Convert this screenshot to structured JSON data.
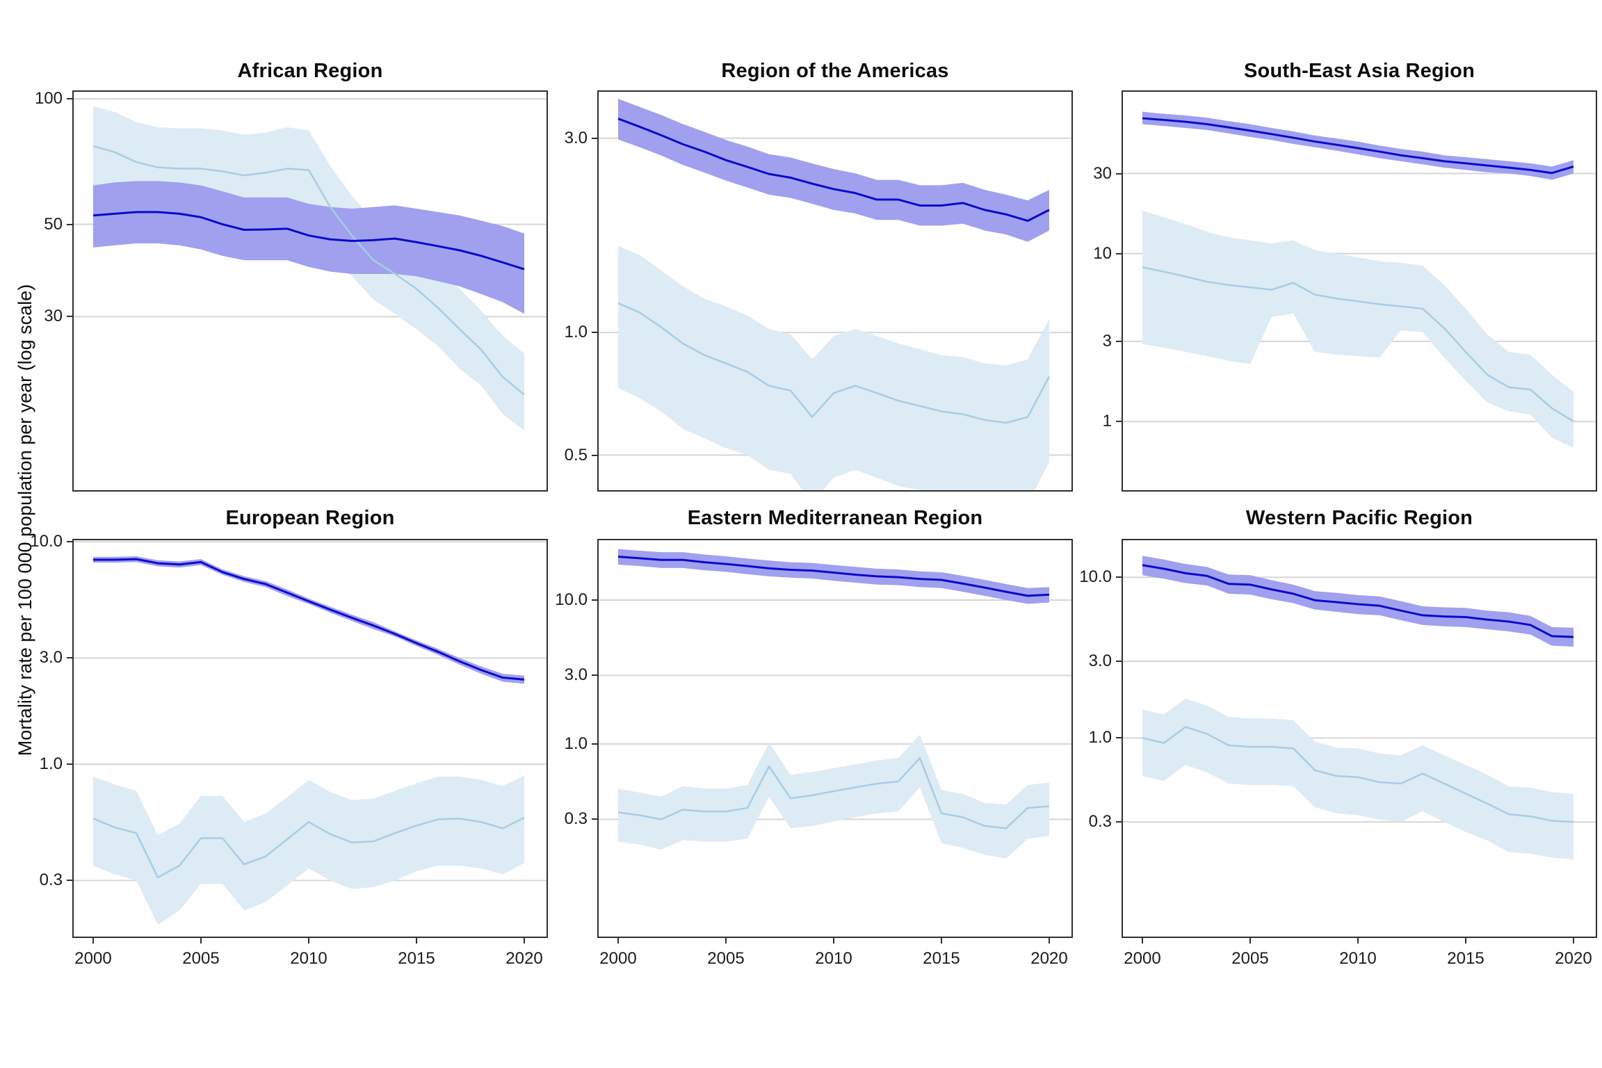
{
  "figure": {
    "y_axis_title": "Mortality rate per 100 000 population per year (log scale)"
  },
  "colors": {
    "dark_line": "#0a0acd",
    "dark_band": "#a0a0ef",
    "light_line": "#a6cde3",
    "light_band": "#ddebf5",
    "gridline": "#d6d6d6",
    "panel_border": "#2f2f2f",
    "text": "#0d0d0d"
  },
  "x_ticks": [
    "2000",
    "2005",
    "2010",
    "2015",
    "2020"
  ],
  "chart_data": [
    {
      "type": "line",
      "title": "African Region",
      "x_range": [
        2000,
        2020
      ],
      "ylim": [
        11.5,
        104
      ],
      "grid": true,
      "legend": "none",
      "y_ticks": [
        {
          "label": "100",
          "value": 100
        },
        {
          "label": "50",
          "value": 50
        },
        {
          "label": "30",
          "value": 30
        }
      ],
      "series": [
        {
          "name": "dark-blue-estimate",
          "values": [
            52.5,
            53,
            53.5,
            53.5,
            53,
            52,
            50,
            48.5,
            48.6,
            48.8,
            47,
            46,
            45.6,
            45.8,
            46.2,
            45.3,
            44.3,
            43.3,
            42,
            40.5,
            39
          ],
          "lower": [
            44,
            44.5,
            45,
            45,
            44.5,
            43.5,
            42,
            41,
            41,
            41,
            39.5,
            38.5,
            38,
            38,
            38,
            37.5,
            36.5,
            35.5,
            34,
            32.5,
            30.5
          ],
          "upper": [
            62,
            63,
            63.5,
            63.5,
            63,
            62,
            60,
            58,
            58,
            58,
            56,
            55,
            54.5,
            55,
            55.5,
            54.5,
            53.5,
            52.5,
            51,
            49.5,
            47.5
          ]
        },
        {
          "name": "light-blue-estimate",
          "values": [
            77,
            74.5,
            70.5,
            68.5,
            68,
            68,
            67,
            65.5,
            66.5,
            68,
            67.5,
            55,
            47,
            41,
            38,
            35,
            31.5,
            28,
            25,
            21.5,
            19.5
          ],
          "lower": [
            61,
            59,
            56,
            54.5,
            54,
            54,
            53,
            52,
            53,
            54.5,
            54,
            44,
            37.5,
            33,
            30.5,
            28,
            25.5,
            22.5,
            20.5,
            17.5,
            16
          ],
          "upper": [
            96,
            93,
            88,
            85.5,
            85,
            85,
            84,
            82,
            83,
            85.5,
            84,
            69,
            58.5,
            51,
            47.5,
            44,
            39.5,
            35,
            31,
            27,
            24.5
          ]
        }
      ]
    },
    {
      "type": "line",
      "title": "Region of the Americas",
      "x_range": [
        2000,
        2020
      ],
      "ylim": [
        0.41,
        3.9
      ],
      "grid": true,
      "legend": "none",
      "y_ticks": [
        {
          "label": "3.0",
          "value": 3.0
        },
        {
          "label": "1.0",
          "value": 1.0
        },
        {
          "label": "0.5",
          "value": 0.5
        }
      ],
      "series": [
        {
          "name": "dark-blue-estimate",
          "values": [
            3.35,
            3.2,
            3.05,
            2.9,
            2.78,
            2.65,
            2.55,
            2.45,
            2.4,
            2.32,
            2.25,
            2.2,
            2.12,
            2.12,
            2.05,
            2.05,
            2.08,
            2.0,
            1.95,
            1.88,
            2.0
          ],
          "lower": [
            2.98,
            2.85,
            2.72,
            2.58,
            2.47,
            2.36,
            2.27,
            2.18,
            2.14,
            2.07,
            2.0,
            1.96,
            1.89,
            1.89,
            1.83,
            1.83,
            1.85,
            1.78,
            1.74,
            1.67,
            1.78
          ],
          "upper": [
            3.75,
            3.58,
            3.42,
            3.25,
            3.11,
            2.97,
            2.86,
            2.74,
            2.69,
            2.6,
            2.52,
            2.46,
            2.37,
            2.37,
            2.3,
            2.3,
            2.33,
            2.24,
            2.18,
            2.11,
            2.24
          ]
        },
        {
          "name": "light-blue-estimate",
          "values": [
            1.18,
            1.12,
            1.03,
            0.94,
            0.88,
            0.84,
            0.8,
            0.74,
            0.72,
            0.62,
            0.71,
            0.74,
            0.71,
            0.68,
            0.66,
            0.64,
            0.63,
            0.61,
            0.6,
            0.62,
            0.78
          ],
          "lower": [
            0.73,
            0.69,
            0.64,
            0.58,
            0.55,
            0.52,
            0.5,
            0.46,
            0.45,
            0.38,
            0.44,
            0.46,
            0.44,
            0.42,
            0.41,
            0.4,
            0.39,
            0.38,
            0.37,
            0.38,
            0.48
          ],
          "upper": [
            1.63,
            1.55,
            1.42,
            1.3,
            1.21,
            1.16,
            1.1,
            1.02,
            0.99,
            0.86,
            0.98,
            1.02,
            0.98,
            0.94,
            0.91,
            0.88,
            0.87,
            0.84,
            0.83,
            0.86,
            1.08
          ]
        }
      ]
    },
    {
      "type": "line",
      "title": "South-East Asia Region",
      "x_range": [
        2000,
        2020
      ],
      "ylim": [
        0.39,
        92
      ],
      "grid": true,
      "legend": "none",
      "y_ticks": [
        {
          "label": "30",
          "value": 30
        },
        {
          "label": "10",
          "value": 10
        },
        {
          "label": "3",
          "value": 3
        },
        {
          "label": "1",
          "value": 1
        }
      ],
      "series": [
        {
          "name": "dark-blue-estimate",
          "values": [
            64,
            62.5,
            61,
            59,
            56.5,
            54,
            51.5,
            49,
            46.5,
            44.5,
            42.5,
            40.5,
            38.5,
            37,
            35.5,
            34.5,
            33.5,
            32.5,
            31.5,
            30.2,
            33
          ],
          "lower": [
            59,
            57.5,
            56,
            54.5,
            52,
            49.5,
            47.5,
            45,
            43,
            41,
            39,
            37,
            35.5,
            34,
            32.5,
            31.5,
            30.5,
            30,
            29,
            27.5,
            30
          ],
          "upper": [
            70,
            68,
            66.5,
            64.5,
            61.5,
            59,
            56,
            53.5,
            50.5,
            48.5,
            46.5,
            44,
            42,
            40.5,
            38.5,
            37.5,
            36.5,
            35.5,
            34.5,
            33,
            36
          ]
        },
        {
          "name": "light-blue-estimate",
          "values": [
            8.3,
            7.8,
            7.3,
            6.8,
            6.5,
            6.3,
            6.1,
            6.7,
            5.7,
            5.4,
            5.2,
            5.0,
            4.85,
            4.7,
            3.6,
            2.6,
            1.9,
            1.6,
            1.55,
            1.2,
            1.0
          ],
          "lower": [
            2.9,
            2.75,
            2.6,
            2.45,
            2.3,
            2.2,
            4.2,
            4.4,
            2.6,
            2.5,
            2.45,
            2.4,
            3.5,
            3.4,
            2.4,
            1.75,
            1.3,
            1.15,
            1.1,
            0.8,
            0.7
          ],
          "upper": [
            18,
            16.5,
            15,
            13.5,
            12.5,
            12,
            11.5,
            12,
            10.5,
            10,
            9.5,
            9,
            8.8,
            8.5,
            6.5,
            4.7,
            3.3,
            2.6,
            2.5,
            1.9,
            1.5
          ]
        }
      ]
    },
    {
      "type": "line",
      "title": "European Region",
      "x_range": [
        2000,
        2020
      ],
      "ylim": [
        0.168,
        10.15
      ],
      "grid": true,
      "legend": "none",
      "y_ticks": [
        {
          "label": "10.0",
          "value": 10.0
        },
        {
          "label": "3.0",
          "value": 3.0
        },
        {
          "label": "1.0",
          "value": 1.0
        },
        {
          "label": "0.3",
          "value": 0.3
        }
      ],
      "series": [
        {
          "name": "dark-blue-estimate",
          "values": [
            8.3,
            8.3,
            8.35,
            8.0,
            7.9,
            8.1,
            7.3,
            6.8,
            6.45,
            5.9,
            5.4,
            4.95,
            4.55,
            4.2,
            3.85,
            3.5,
            3.2,
            2.9,
            2.65,
            2.45,
            2.4
          ],
          "lower": [
            8.05,
            8.05,
            8.1,
            7.75,
            7.65,
            7.85,
            7.1,
            6.6,
            6.25,
            5.7,
            5.25,
            4.8,
            4.4,
            4.05,
            3.75,
            3.4,
            3.1,
            2.8,
            2.55,
            2.35,
            2.3
          ],
          "upper": [
            8.55,
            8.55,
            8.6,
            8.25,
            8.15,
            8.35,
            7.5,
            7.0,
            6.65,
            6.1,
            5.55,
            5.1,
            4.7,
            4.35,
            3.95,
            3.6,
            3.3,
            3.0,
            2.75,
            2.55,
            2.5
          ]
        },
        {
          "name": "light-blue-estimate",
          "values": [
            0.57,
            0.52,
            0.49,
            0.31,
            0.35,
            0.465,
            0.465,
            0.355,
            0.385,
            0.46,
            0.55,
            0.485,
            0.445,
            0.45,
            0.49,
            0.53,
            0.565,
            0.57,
            0.55,
            0.515,
            0.575
          ],
          "lower": [
            0.35,
            0.32,
            0.3,
            0.19,
            0.22,
            0.29,
            0.29,
            0.22,
            0.24,
            0.285,
            0.34,
            0.3,
            0.275,
            0.28,
            0.3,
            0.33,
            0.35,
            0.35,
            0.34,
            0.32,
            0.36
          ],
          "upper": [
            0.88,
            0.81,
            0.76,
            0.48,
            0.54,
            0.72,
            0.72,
            0.55,
            0.6,
            0.71,
            0.85,
            0.75,
            0.69,
            0.7,
            0.76,
            0.82,
            0.88,
            0.88,
            0.85,
            0.8,
            0.89
          ]
        }
      ]
    },
    {
      "type": "line",
      "title": "Eastern Mediterranean Region",
      "x_range": [
        2000,
        2020
      ],
      "ylim": [
        0.046,
        26
      ],
      "grid": true,
      "legend": "none",
      "y_ticks": [
        {
          "label": "10.0",
          "value": 10.0
        },
        {
          "label": "3.0",
          "value": 3.0
        },
        {
          "label": "1.0",
          "value": 1.0
        },
        {
          "label": "0.3",
          "value": 0.3
        }
      ],
      "series": [
        {
          "name": "dark-blue-estimate",
          "values": [
            20,
            19.5,
            19,
            19,
            18.3,
            17.8,
            17.2,
            16.6,
            16.2,
            16,
            15.5,
            15,
            14.6,
            14.4,
            14,
            13.8,
            13,
            12.2,
            11.4,
            10.7,
            10.9
          ],
          "lower": [
            17.6,
            17.2,
            16.7,
            16.7,
            16.1,
            15.7,
            15.1,
            14.6,
            14.3,
            14.1,
            13.6,
            13.2,
            12.8,
            12.7,
            12.3,
            12.1,
            11.4,
            10.7,
            10,
            9.4,
            9.6
          ],
          "upper": [
            22.6,
            22,
            21.5,
            21.5,
            20.7,
            20.1,
            19.4,
            18.8,
            18.3,
            18.1,
            17.5,
            17,
            16.5,
            16.3,
            15.8,
            15.6,
            14.7,
            13.8,
            12.9,
            12.1,
            12.3
          ]
        },
        {
          "name": "light-blue-estimate",
          "values": [
            0.335,
            0.32,
            0.3,
            0.35,
            0.34,
            0.34,
            0.36,
            0.7,
            0.42,
            0.44,
            0.47,
            0.5,
            0.53,
            0.55,
            0.8,
            0.33,
            0.31,
            0.27,
            0.26,
            0.36,
            0.37
          ],
          "lower": [
            0.21,
            0.2,
            0.185,
            0.215,
            0.21,
            0.21,
            0.22,
            0.43,
            0.26,
            0.27,
            0.29,
            0.31,
            0.33,
            0.34,
            0.5,
            0.205,
            0.19,
            0.17,
            0.16,
            0.22,
            0.23
          ],
          "upper": [
            0.49,
            0.46,
            0.43,
            0.51,
            0.49,
            0.49,
            0.52,
            1.02,
            0.61,
            0.64,
            0.68,
            0.72,
            0.77,
            0.8,
            1.16,
            0.48,
            0.45,
            0.39,
            0.38,
            0.52,
            0.54
          ]
        }
      ]
    },
    {
      "type": "line",
      "title": "Western Pacific Region",
      "x_range": [
        2000,
        2020
      ],
      "ylim": [
        0.058,
        17
      ],
      "grid": true,
      "legend": "none",
      "y_ticks": [
        {
          "label": "10.0",
          "value": 10.0
        },
        {
          "label": "3.0",
          "value": 3.0
        },
        {
          "label": "1.0",
          "value": 1.0
        },
        {
          "label": "0.3",
          "value": 0.3
        }
      ],
      "series": [
        {
          "name": "dark-blue-estimate",
          "values": [
            11.9,
            11.3,
            10.6,
            10.2,
            9.1,
            9.0,
            8.4,
            7.9,
            7.2,
            7.0,
            6.8,
            6.65,
            6.2,
            5.8,
            5.7,
            5.65,
            5.45,
            5.3,
            5.05,
            4.3,
            4.25
          ],
          "lower": [
            10.3,
            9.8,
            9.2,
            8.9,
            7.9,
            7.8,
            7.3,
            6.9,
            6.3,
            6.1,
            5.9,
            5.8,
            5.4,
            5.05,
            4.95,
            4.9,
            4.75,
            4.6,
            4.4,
            3.75,
            3.7
          ],
          "upper": [
            13.6,
            12.9,
            12.1,
            11.6,
            10.4,
            10.3,
            9.6,
            9.0,
            8.2,
            8.0,
            7.75,
            7.6,
            7.1,
            6.6,
            6.5,
            6.45,
            6.2,
            6.05,
            5.75,
            4.9,
            4.85
          ]
        },
        {
          "name": "light-blue-estimate",
          "values": [
            1.0,
            0.93,
            1.17,
            1.06,
            0.9,
            0.88,
            0.88,
            0.86,
            0.63,
            0.58,
            0.57,
            0.53,
            0.52,
            0.6,
            0.52,
            0.45,
            0.39,
            0.335,
            0.325,
            0.305,
            0.3
          ],
          "lower": [
            0.58,
            0.54,
            0.68,
            0.61,
            0.52,
            0.51,
            0.51,
            0.5,
            0.37,
            0.34,
            0.33,
            0.31,
            0.3,
            0.35,
            0.3,
            0.26,
            0.23,
            0.195,
            0.19,
            0.18,
            0.175
          ],
          "upper": [
            1.5,
            1.4,
            1.76,
            1.59,
            1.35,
            1.32,
            1.32,
            1.29,
            0.95,
            0.87,
            0.86,
            0.8,
            0.78,
            0.9,
            0.78,
            0.68,
            0.59,
            0.5,
            0.49,
            0.46,
            0.45
          ]
        }
      ]
    }
  ]
}
